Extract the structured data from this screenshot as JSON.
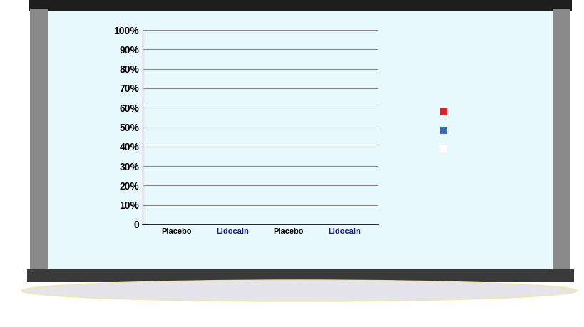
{
  "chart_data": {
    "type": "bar",
    "categories": [
      "Placebo",
      "Lidocain",
      "Placebo",
      "Lidocain"
    ],
    "series": [
      {
        "color": "#e02020",
        "values": [
          null,
          null,
          null,
          null
        ]
      },
      {
        "color": "#3a6fb0",
        "values": [
          null,
          null,
          null,
          null
        ]
      },
      {
        "color": "#ffffff",
        "values": [
          null,
          null,
          null,
          null
        ]
      }
    ],
    "ylim": [
      0,
      100
    ],
    "yticks": [
      0,
      {
        "value": 10,
        "label": "10%"
      },
      {
        "value": 20,
        "label": "20%"
      },
      {
        "value": 30,
        "label": "30%"
      },
      {
        "value": 40,
        "label": "40%"
      },
      {
        "value": 50,
        "label": "50%"
      },
      {
        "value": 60,
        "label": "60%"
      },
      {
        "value": 70,
        "label": "70%"
      },
      {
        "value": 80,
        "label": "80%"
      },
      {
        "value": 90,
        "label": "90%"
      },
      {
        "value": 100,
        "label": "100%"
      }
    ],
    "grid": true
  }
}
